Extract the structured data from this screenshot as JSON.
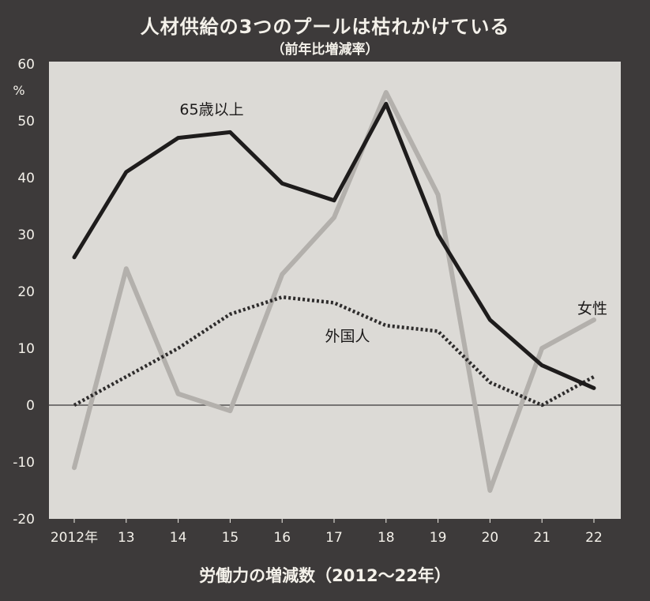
{
  "header": {
    "title": "人材供給の3つのプールは枯れかけている",
    "subtitle": "（前年比増減率）"
  },
  "footer": {
    "caption": "労働力の増減数（2012〜22年）"
  },
  "colors": {
    "frame": "#3d3a3a",
    "plot_background": "#dcdad6",
    "axis_text": "#f4f1ea",
    "series_65plus": "#1e1c1c",
    "series_women": "#b3b0ac",
    "series_foreign": "#2e2c2c"
  },
  "chart_data": {
    "type": "line",
    "title": "人材供給の3つのプールは枯れかけている",
    "subtitle": "（前年比増減率）",
    "y_unit_label": "%",
    "xlabel": "",
    "ylabel": "",
    "ylim": [
      -20,
      60
    ],
    "yticks": [
      -20,
      -10,
      0,
      10,
      20,
      30,
      40,
      50,
      60
    ],
    "ytick_labels": [
      "-20",
      "-10",
      "0",
      "10",
      "20",
      "30",
      "40",
      "50",
      "60"
    ],
    "categories": [
      "2012年",
      "13",
      "14",
      "15",
      "16",
      "17",
      "18",
      "19",
      "20",
      "21",
      "22"
    ],
    "grid": false,
    "zero_line": true,
    "series": [
      {
        "name": "65歳以上",
        "style": "solid-dark",
        "values": [
          26,
          41,
          47,
          48,
          39,
          36,
          53,
          30,
          15,
          7,
          3
        ]
      },
      {
        "name": "女性",
        "style": "solid-light",
        "values": [
          -11,
          24,
          2,
          -1,
          23,
          33,
          55,
          37,
          -15,
          10,
          15
        ]
      },
      {
        "name": "外国人",
        "style": "dotted-dark",
        "values": [
          0,
          5,
          10,
          16,
          19,
          18,
          14,
          13,
          4,
          0,
          5
        ]
      }
    ]
  }
}
